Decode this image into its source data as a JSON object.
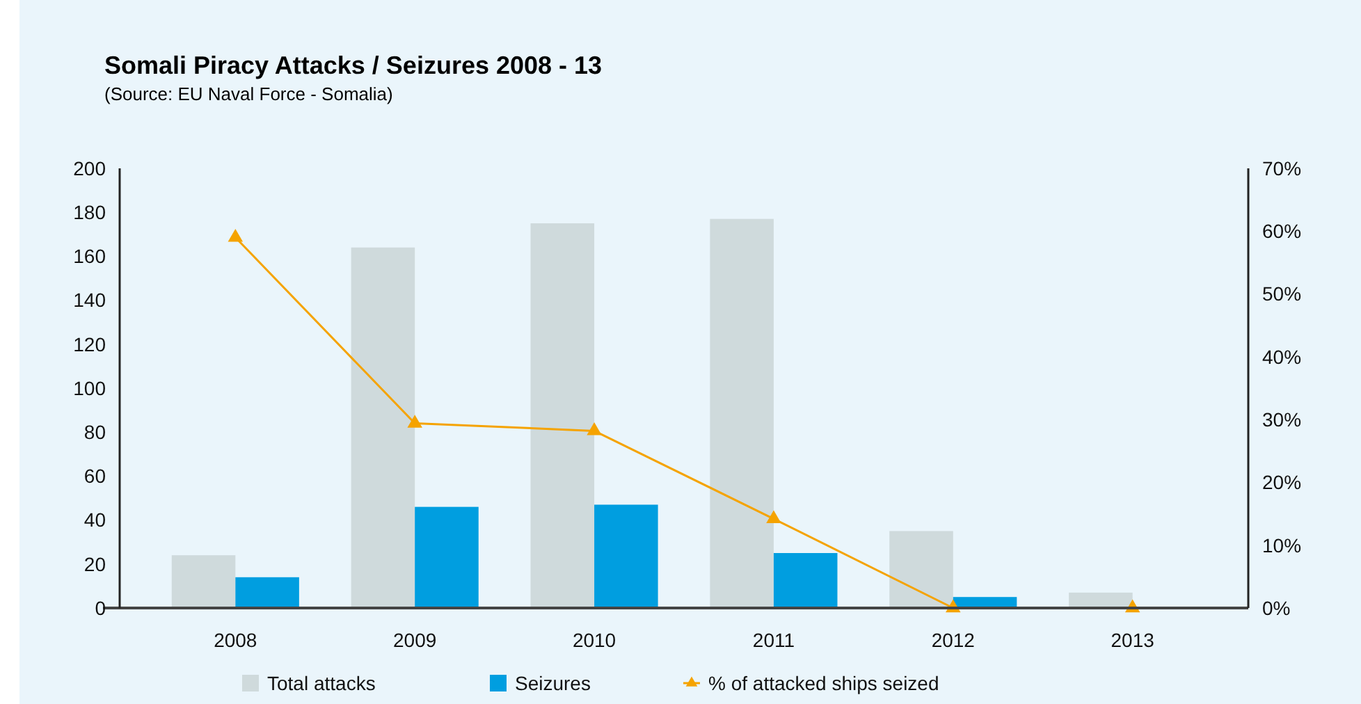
{
  "chart_data": {
    "type": "bar",
    "title": "Somali Piracy Attacks / Seizures 2008 - 13",
    "subtitle": "(Source: EU Naval Force - Somalia)",
    "categories": [
      "2008",
      "2009",
      "2010",
      "2011",
      "2012",
      "2013"
    ],
    "series": [
      {
        "name": "Total attacks",
        "color": "#cfdadc",
        "values": [
          24,
          164,
          175,
          177,
          35,
          7
        ]
      },
      {
        "name": "Seizures",
        "color": "#009ee0",
        "values": [
          14,
          46,
          47,
          25,
          5,
          0
        ]
      },
      {
        "name": "% of attacked ships seized",
        "type": "line",
        "axis": "y2",
        "color": "#f5a300",
        "marker": "triangle",
        "values": [
          59,
          29.4,
          28.2,
          14.2,
          0,
          0
        ]
      }
    ],
    "ylim": [
      0,
      200
    ],
    "yticks": [
      0,
      20,
      40,
      60,
      80,
      100,
      120,
      140,
      160,
      180,
      200
    ],
    "y2lim": [
      0,
      70
    ],
    "y2ticks": [
      {
        "value": 0,
        "label": "0%"
      },
      {
        "value": 10,
        "label": "10%"
      },
      {
        "value": 20,
        "label": "20%"
      },
      {
        "value": 30,
        "label": "30%"
      },
      {
        "value": 40,
        "label": "40%"
      },
      {
        "value": 50,
        "label": "50%"
      },
      {
        "value": 60,
        "label": "60%"
      },
      {
        "value": 70,
        "label": "70%"
      }
    ],
    "legend": "bottom",
    "grid": false
  }
}
